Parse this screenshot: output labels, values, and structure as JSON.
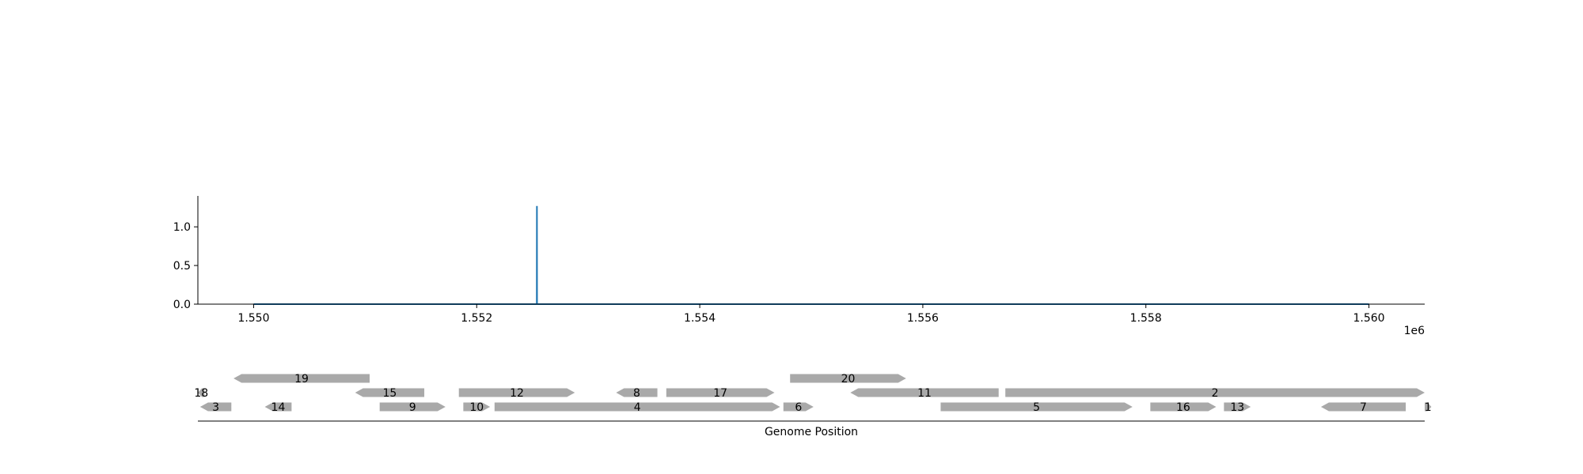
{
  "chart_data": [
    {
      "type": "line",
      "x_offset_label": "1e6",
      "xlim": [
        1549500,
        1560500
      ],
      "ylim": [
        0,
        1.4
      ],
      "x_ticks": [
        1550000,
        1552000,
        1554000,
        1556000,
        1558000,
        1560000
      ],
      "x_tick_labels": [
        "1.550",
        "1.552",
        "1.554",
        "1.556",
        "1.558",
        "1.560"
      ],
      "y_ticks": [
        0.0,
        0.5,
        1.0
      ],
      "y_tick_labels": [
        "0.0",
        "0.5",
        "1.0"
      ],
      "line_color": "#1f77b4",
      "series": [
        {
          "x": [
            1550000,
            1552539,
            1552540,
            1552541,
            1560000
          ],
          "y": [
            0.0,
            0.0,
            1.27,
            0.0,
            0.0
          ]
        }
      ]
    },
    {
      "type": "gene-map",
      "xlabel": "Genome Position",
      "gene_color": "#a9a9a9",
      "genes": [
        {
          "label": "18",
          "start": 1549500,
          "end": 1549560,
          "strand": -1,
          "row": 2
        },
        {
          "label": "3",
          "start": 1549520,
          "end": 1549800,
          "strand": -1,
          "row": 1
        },
        {
          "label": "19",
          "start": 1549820,
          "end": 1551040,
          "strand": -1,
          "row": 3
        },
        {
          "label": "15",
          "start": 1550910,
          "end": 1551530,
          "strand": -1,
          "row": 2
        },
        {
          "label": "14",
          "start": 1550100,
          "end": 1550340,
          "strand": -1,
          "row": 1
        },
        {
          "label": "9",
          "start": 1551130,
          "end": 1551720,
          "strand": 1,
          "row": 1
        },
        {
          "label": "12",
          "start": 1551840,
          "end": 1552880,
          "strand": 1,
          "row": 2
        },
        {
          "label": "10",
          "start": 1551880,
          "end": 1552120,
          "strand": 1,
          "row": 1
        },
        {
          "label": "4",
          "start": 1552160,
          "end": 1554720,
          "strand": 1,
          "row": 1
        },
        {
          "label": "8",
          "start": 1553250,
          "end": 1553620,
          "strand": -1,
          "row": 2
        },
        {
          "label": "17",
          "start": 1553700,
          "end": 1554670,
          "strand": 1,
          "row": 2
        },
        {
          "label": "20",
          "start": 1554810,
          "end": 1555850,
          "strand": 1,
          "row": 3
        },
        {
          "label": "6",
          "start": 1554750,
          "end": 1555020,
          "strand": 1,
          "row": 1
        },
        {
          "label": "11",
          "start": 1555350,
          "end": 1556680,
          "strand": -1,
          "row": 2
        },
        {
          "label": "2",
          "start": 1556740,
          "end": 1560500,
          "strand": 1,
          "row": 2
        },
        {
          "label": "5",
          "start": 1556160,
          "end": 1557880,
          "strand": 1,
          "row": 1
        },
        {
          "label": "16",
          "start": 1558040,
          "end": 1558630,
          "strand": 1,
          "row": 1
        },
        {
          "label": "13",
          "start": 1558700,
          "end": 1558940,
          "strand": 1,
          "row": 1
        },
        {
          "label": "7",
          "start": 1559570,
          "end": 1560330,
          "strand": -1,
          "row": 1
        },
        {
          "label": "1",
          "start": 1560500,
          "end": 1560560,
          "strand": 1,
          "row": 1
        }
      ]
    }
  ]
}
